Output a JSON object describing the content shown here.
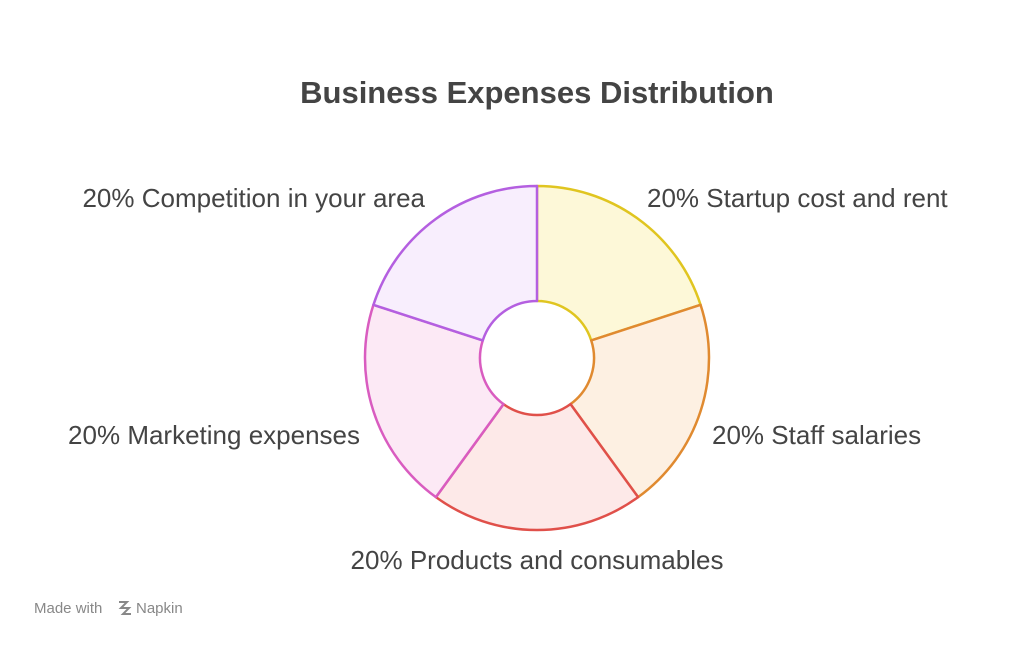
{
  "chart_data": {
    "type": "donut",
    "title": "Business Expenses Distribution",
    "categories": [
      "Startup cost and rent",
      "Staff salaries",
      "Products and consumables",
      "Marketing expenses",
      "Competition in your area"
    ],
    "values": [
      20,
      20,
      20,
      20,
      20
    ],
    "value_labels": [
      "20%",
      "20%",
      "20%",
      "20%",
      "20%"
    ],
    "colors": [
      "#e0c520",
      "#e08a30",
      "#e0504a",
      "#d95cc0",
      "#b45fe0"
    ],
    "fills": [
      "#fdf8d8",
      "#fdf0e2",
      "#fde9e8",
      "#fce9f5",
      "#f8eefd"
    ]
  },
  "footer": {
    "prefix": "Made with",
    "brand": "Napkin"
  }
}
